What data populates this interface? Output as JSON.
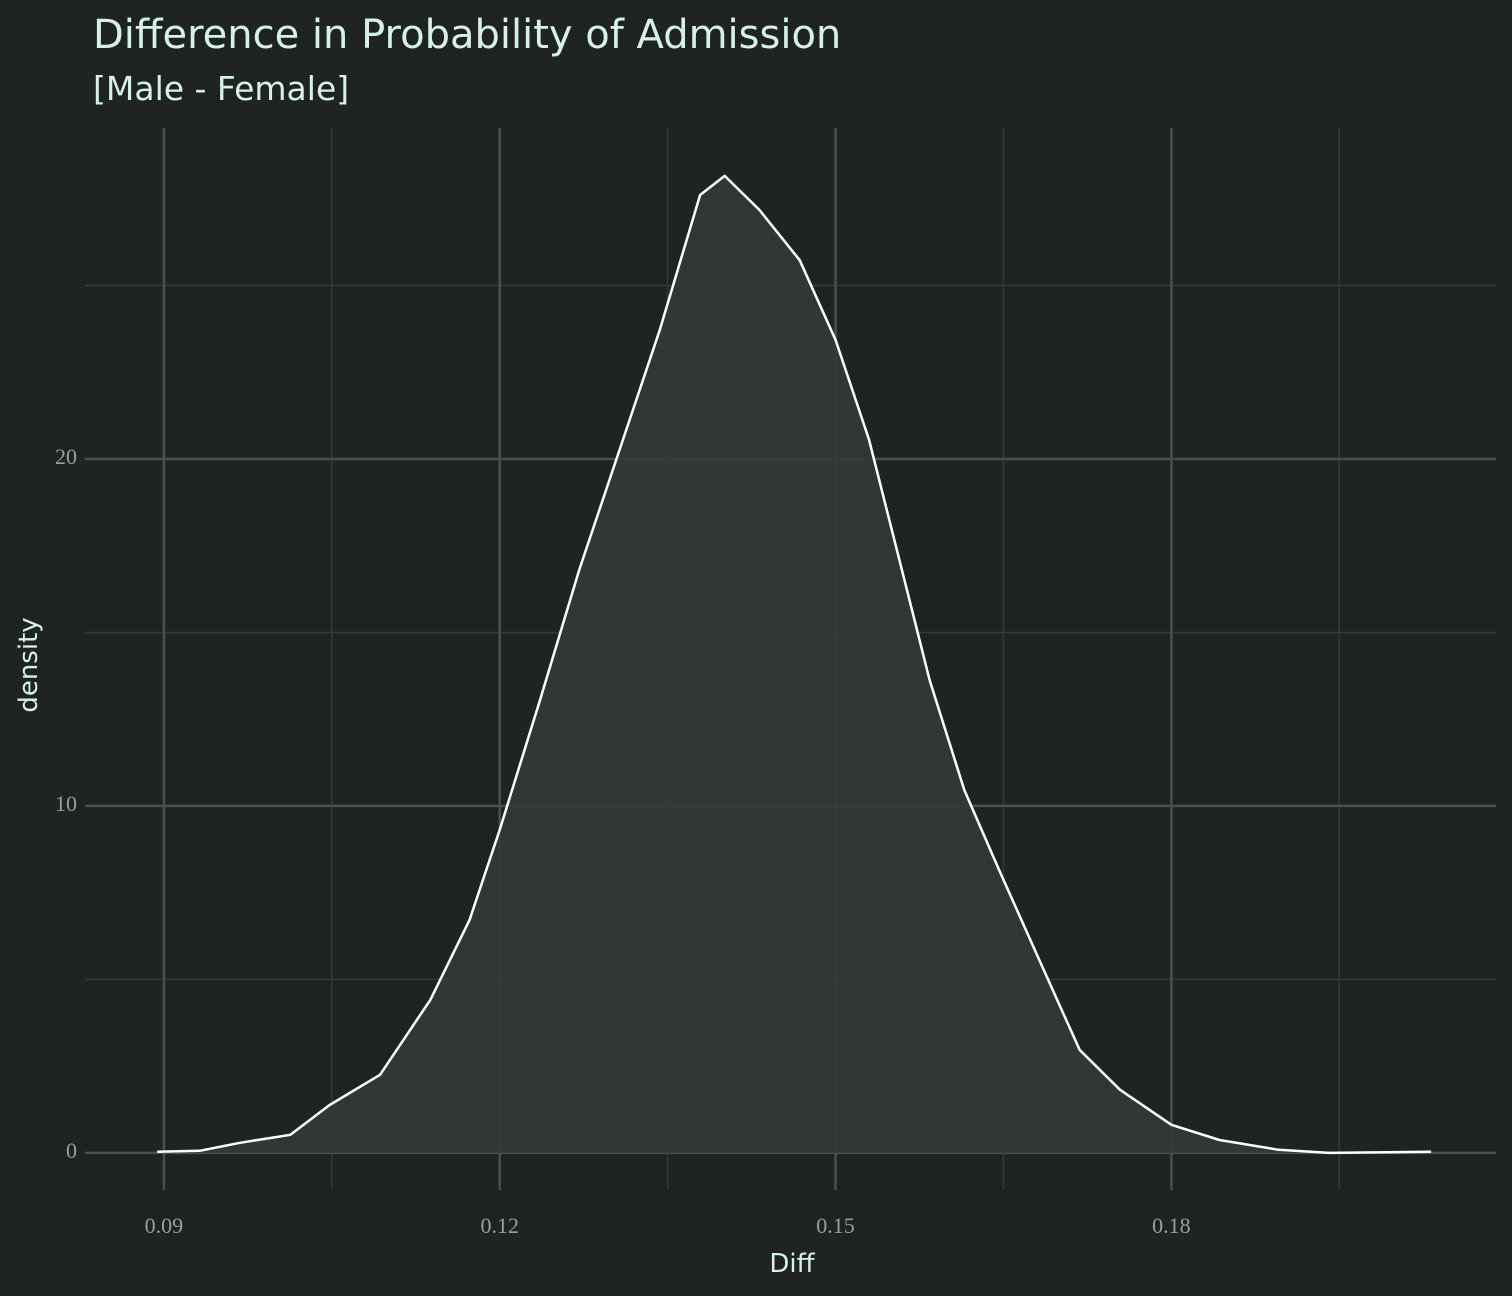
{
  "chart_data": {
    "type": "density",
    "title": "Difference in Probability of Admission",
    "subtitle": "[Male - Female]",
    "x_label": "Diff",
    "y_label": "density",
    "x": [
      0.0894,
      0.0932,
      0.0968,
      0.1013,
      0.1048,
      0.1093,
      0.1138,
      0.1173,
      0.12,
      0.1236,
      0.1271,
      0.1307,
      0.1343,
      0.1379,
      0.1401,
      0.1432,
      0.1468,
      0.15,
      0.153,
      0.1557,
      0.1584,
      0.1615,
      0.1646,
      0.1682,
      0.1718,
      0.1754,
      0.18,
      0.1843,
      0.1896,
      0.1941,
      0.2032
    ],
    "values": [
      0.03,
      0.06,
      0.29,
      0.52,
      1.38,
      2.25,
      4.41,
      6.71,
      9.31,
      13.05,
      16.8,
      20.26,
      23.72,
      27.61,
      28.16,
      27.18,
      25.73,
      23.43,
      20.55,
      17.09,
      13.63,
      10.46,
      8.16,
      5.56,
      2.97,
      1.82,
      0.81,
      0.37,
      0.09,
      0,
      0.03
    ],
    "color": "#ffffff",
    "fill": "#343a38",
    "xlim": [
      0.08295,
      0.209
    ],
    "ylim": [
      -1.07,
      29.54
    ],
    "xticks": [
      0.09,
      0.12,
      0.15,
      0.18
    ],
    "yticks": [
      0,
      10,
      20
    ],
    "x_minor_ticks": [
      0.105,
      0.135,
      0.165,
      0.195
    ],
    "y_minor_ticks": [
      5,
      15,
      25
    ],
    "grid": true
  }
}
